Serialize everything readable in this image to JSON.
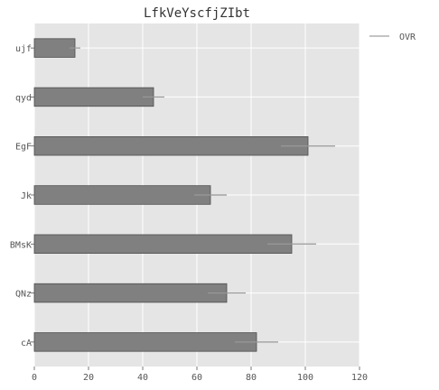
{
  "chart_data": {
    "type": "bar",
    "orientation": "horizontal",
    "title": "LfkVeYscfjZIbt",
    "xlabel": "",
    "ylabel": "",
    "xlim": [
      0,
      120
    ],
    "xticks": [
      0,
      20,
      40,
      60,
      80,
      100,
      120
    ],
    "categories": [
      "ujf",
      "qyd",
      "EgF",
      "Jk",
      "BMsK",
      "QNz",
      "cA"
    ],
    "series": [
      {
        "name": "OVR",
        "values": [
          15,
          44,
          101,
          65,
          95,
          71,
          82
        ],
        "errors": [
          2,
          4,
          10,
          6,
          9,
          7,
          8
        ]
      }
    ],
    "grid": true,
    "legend_position": "outside-top-right",
    "colors": {
      "plot_background": "#e5e5e5",
      "grid": "#ffffff",
      "bar_fill": "#808080",
      "bar_edge": "#4d4d4d",
      "error_bar": "#999999",
      "text": "#555555",
      "title": "#333333",
      "legend_line": "#b0b0b0"
    }
  }
}
